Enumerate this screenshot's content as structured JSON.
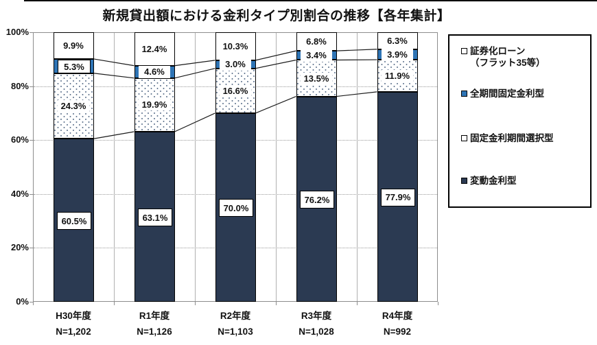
{
  "chart_data": {
    "type": "bar",
    "variant": "100%-stacked-column",
    "title": "新規貸出額における金利タイプ別割合の推移【各年集計】",
    "categories": [
      "H30年度",
      "R1年度",
      "R2年度",
      "R3年度",
      "R4年度"
    ],
    "sample_sizes": [
      "N=1,202",
      "N=1,126",
      "N=1,103",
      "N=1,028",
      "N=992"
    ],
    "y_ticks": [
      "0%",
      "20%",
      "40%",
      "60%",
      "80%",
      "100%"
    ],
    "ylim": [
      0,
      100
    ],
    "grid": "horizontal-dotted",
    "legend_position": "right",
    "series": [
      {
        "key": "floating-rate",
        "name": "変動金利型",
        "fill": "#2b3a52",
        "pattern": "solid",
        "values": [
          60.5,
          63.1,
          70.0,
          76.2,
          77.9
        ],
        "labels": [
          "60.5%",
          "63.1%",
          "70.0%",
          "76.2%",
          "77.9%"
        ],
        "label_style": "white-box"
      },
      {
        "key": "fixed-period-select",
        "name": "固定金利期間選択型",
        "fill": "#ffffff",
        "pattern": "dots",
        "dot_color": "#60748e",
        "values": [
          24.3,
          19.9,
          16.6,
          13.5,
          11.9
        ],
        "labels": [
          "24.3%",
          "19.9%",
          "16.6%",
          "13.5%",
          "11.9%"
        ],
        "label_style": "white-box"
      },
      {
        "key": "full-term-fixed",
        "name": "全期間固定金利型",
        "fill": "#2e74b5",
        "pattern": "solid",
        "values": [
          5.3,
          4.6,
          3.0,
          3.4,
          3.9
        ],
        "labels": [
          "5.3%",
          "4.6%",
          "3.0%",
          "3.4%",
          "3.9%"
        ],
        "label_style": "white-box"
      },
      {
        "key": "securitized-loan",
        "name": "証券化ローン（フラット35等）",
        "fill": "#ffffff",
        "pattern": "solid",
        "values": [
          9.9,
          12.4,
          10.3,
          6.8,
          6.3
        ],
        "labels": [
          "9.9%",
          "12.4%",
          "10.3%",
          "6.8%",
          "6.3%"
        ],
        "label_style": "plain"
      }
    ],
    "legend": [
      {
        "marker": "#ffffff",
        "lines": [
          "証券化ローン",
          "（フラット35等）"
        ]
      },
      {
        "marker": "#2e74b5",
        "lines": [
          "全期間固定金利型"
        ]
      },
      {
        "marker": "#ffffff",
        "lines": [
          "固定金利期間選択型"
        ]
      },
      {
        "marker": "#2b3a52",
        "lines": [
          "変動金利型"
        ]
      }
    ],
    "colors": {
      "navy": "#2b3a52",
      "blue": "#2e74b5",
      "grid": "#999999",
      "plot_border": "#8c8c8c",
      "connector": "#1a1a1a"
    }
  }
}
